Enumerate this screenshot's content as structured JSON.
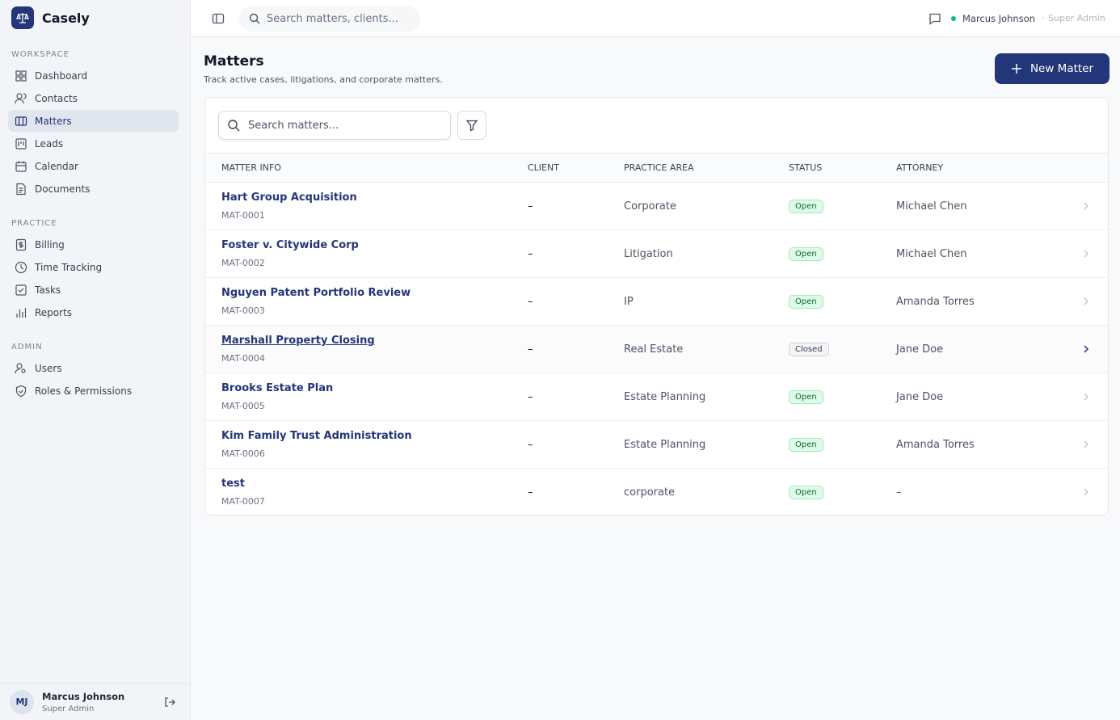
{
  "sidebar": {
    "brand": "Casely",
    "sections": [
      {
        "title": "WORKSPACE",
        "items": [
          "Dashboard",
          "Contacts",
          "Matters",
          "Leads",
          "Calendar",
          "Documents"
        ]
      },
      {
        "title": "PRACTICE",
        "items": [
          "Billing",
          "Time Tracking",
          "Tasks",
          "Reports"
        ]
      },
      {
        "title": "ADMIN",
        "items": [
          "Users",
          "Roles & Permissions"
        ]
      }
    ],
    "user": {
      "initials": "MJ",
      "name": "Marcus Johnson",
      "role": "Super Admin"
    }
  },
  "topbar": {
    "search_placeholder": "Search matters, clients...",
    "user_name": "Marcus Johnson",
    "user_role": "Super Admin"
  },
  "page": {
    "title": "Matters",
    "subtitle": "Track active cases, litigations, and corporate matters.",
    "new_button": "New Matter",
    "search_placeholder": "Search matters..."
  },
  "table": {
    "columns": [
      "MATTER INFO",
      "CLIENT",
      "PRACTICE AREA",
      "STATUS",
      "ATTORNEY"
    ],
    "rows": [
      [
        "Hart Group Acquisition",
        "MAT-0001",
        "–",
        "Corporate",
        "Open",
        "Michael Chen"
      ],
      [
        "Foster v. Citywide Corp",
        "MAT-0002",
        "–",
        "Litigation",
        "Open",
        "Michael Chen"
      ],
      [
        "Nguyen Patent Portfolio Review",
        "MAT-0003",
        "–",
        "IP",
        "Open",
        "Amanda Torres"
      ],
      [
        "Marshall Property Closing",
        "MAT-0004",
        "–",
        "Real Estate",
        "Closed",
        "Jane Doe"
      ],
      [
        "Brooks Estate Plan",
        "MAT-0005",
        "–",
        "Estate Planning",
        "Open",
        "Jane Doe"
      ],
      [
        "Kim Family Trust Administration",
        "MAT-0006",
        "–",
        "Estate Planning",
        "Open",
        "Amanda Torres"
      ],
      [
        "test",
        "MAT-0007",
        "–",
        "corporate",
        "Open",
        "–"
      ]
    ]
  }
}
